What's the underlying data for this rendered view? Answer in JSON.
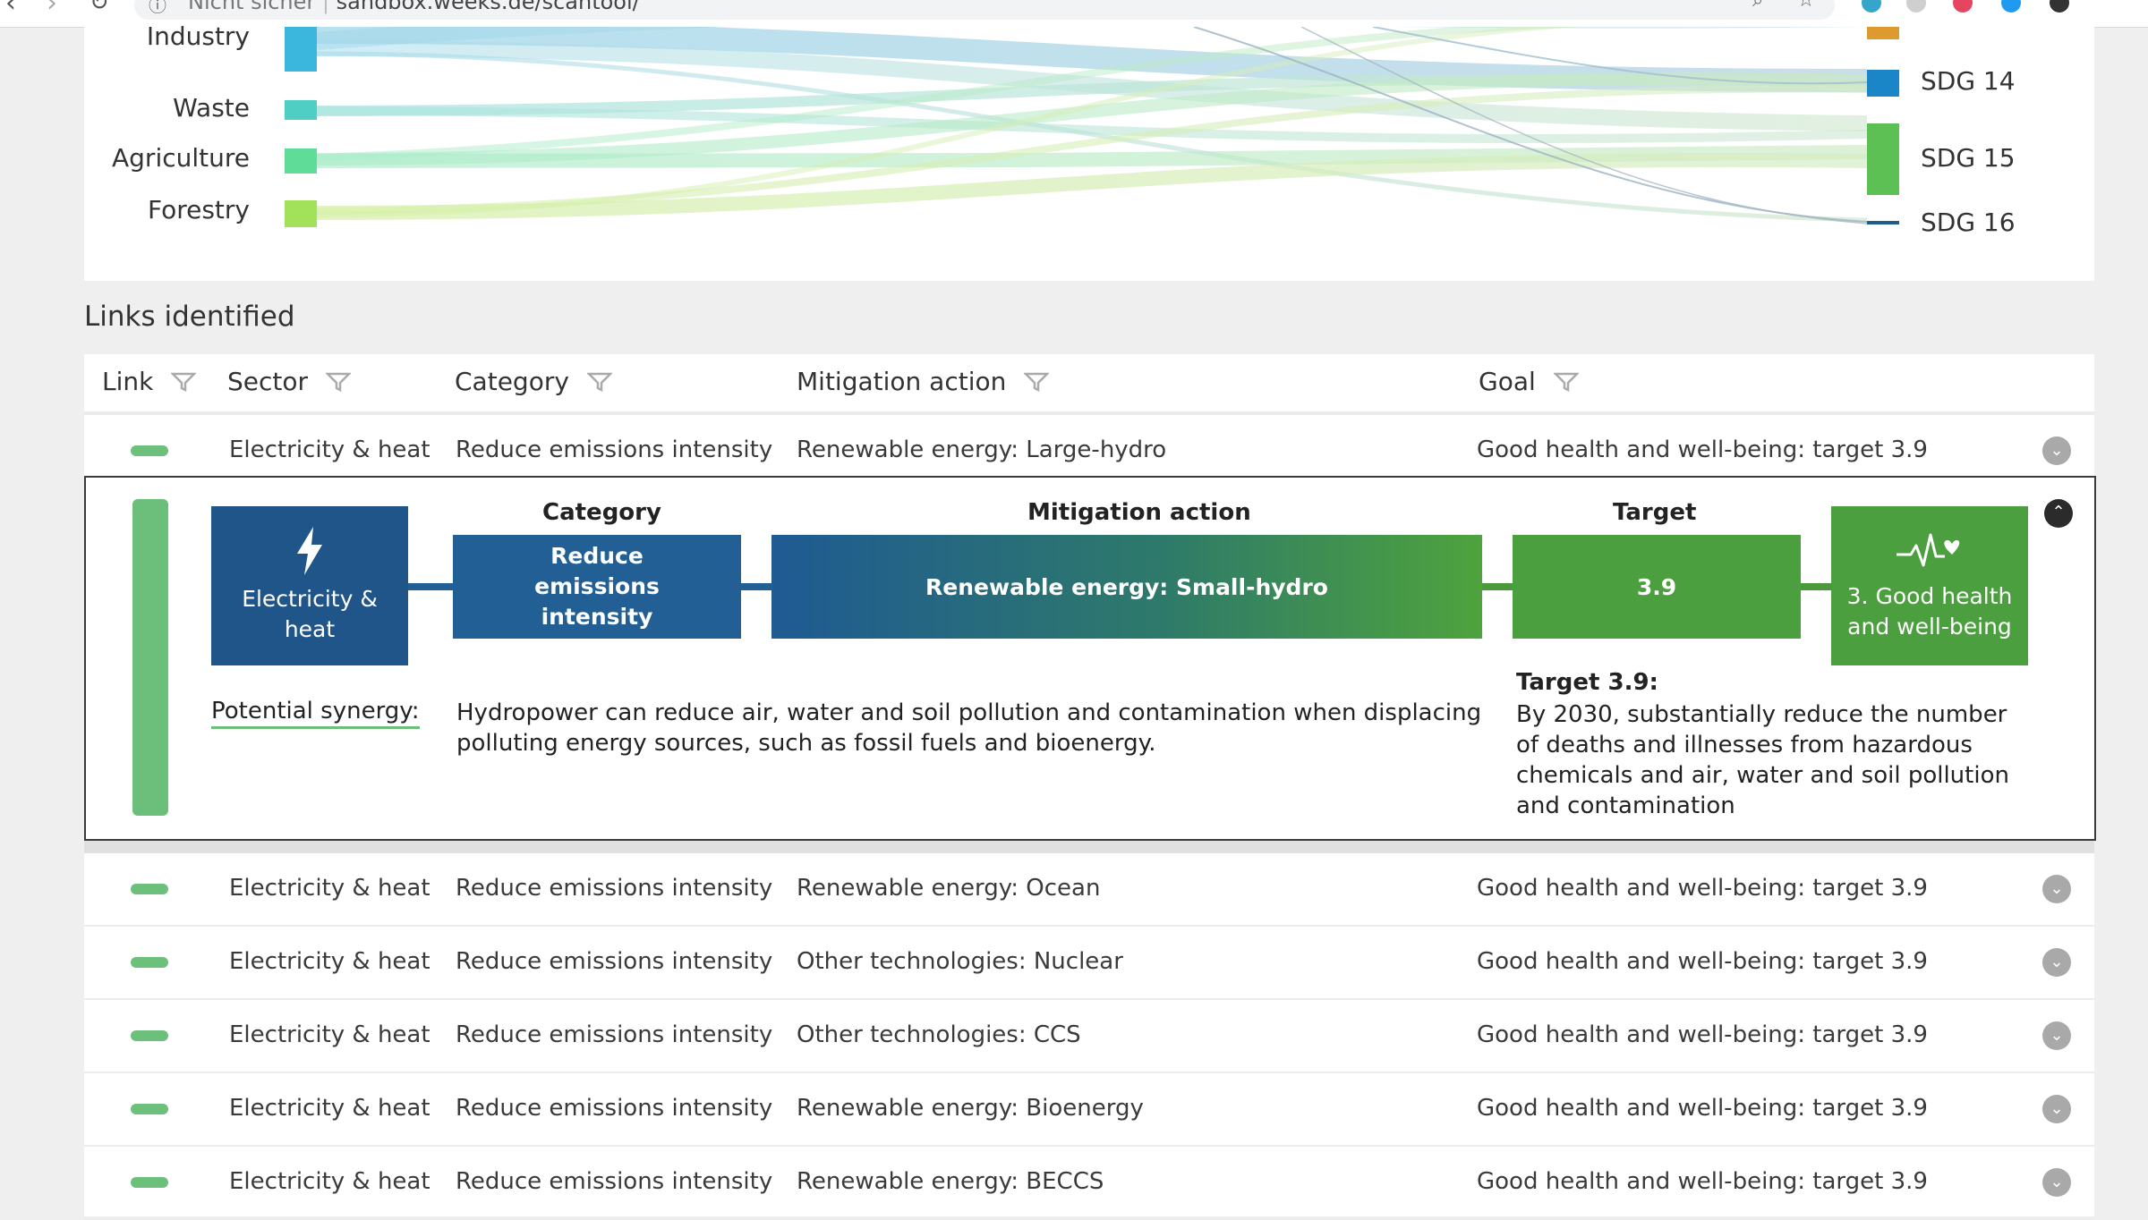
{
  "browser": {
    "security_label": "Nicht sicher",
    "url": "sandbox.weeks.de/scantool/"
  },
  "sankey": {
    "sectors": [
      {
        "label": "Industry",
        "color": "#3bb7dd"
      },
      {
        "label": "Waste",
        "color": "#4fcfc3"
      },
      {
        "label": "Agriculture",
        "color": "#5edc98"
      },
      {
        "label": "Forestry",
        "color": "#a2e25a"
      }
    ],
    "goals": [
      {
        "label": "SDG 14",
        "color": "#1a86c8"
      },
      {
        "label": "SDG 15",
        "color": "#5cc054"
      },
      {
        "label": "SDG 16",
        "color": "#1e5e8c"
      }
    ]
  },
  "links_heading": "Links identified",
  "table": {
    "headers": {
      "link": "Link",
      "sector": "Sector",
      "category": "Category",
      "mitigation_action": "Mitigation action",
      "goal": "Goal"
    },
    "rows": [
      {
        "sector": "Electricity & heat",
        "category": "Reduce emissions intensity",
        "action": "Renewable energy: Large-hydro",
        "goal": "Good health and well-being: target 3.9"
      },
      {
        "sector": "Electricity & heat",
        "category": "Reduce emissions intensity",
        "action": "Renewable energy: Ocean",
        "goal": "Good health and well-being: target 3.9"
      },
      {
        "sector": "Electricity & heat",
        "category": "Reduce emissions intensity",
        "action": "Other technologies: Nuclear",
        "goal": "Good health and well-being: target 3.9"
      },
      {
        "sector": "Electricity & heat",
        "category": "Reduce emissions intensity",
        "action": "Other technologies: CCS",
        "goal": "Good health and well-being: target 3.9"
      },
      {
        "sector": "Electricity & heat",
        "category": "Reduce emissions intensity",
        "action": "Renewable energy: Bioenergy",
        "goal": "Good health and well-being: target 3.9"
      },
      {
        "sector": "Electricity & heat",
        "category": "Reduce emissions intensity",
        "action": "Renewable energy: BECCS",
        "goal": "Good health and well-being: target 3.9"
      }
    ]
  },
  "detail": {
    "headers": {
      "category": "Category",
      "mitigation_action": "Mitigation action",
      "target": "Target"
    },
    "sector_box": "Electricity & heat",
    "category_box": "Reduce emissions intensity",
    "action_box": "Renewable energy: Small-hydro",
    "target_box": "3.9",
    "goal_box": "3. Good health and well-being",
    "synergy_label": "Potential synergy:",
    "synergy_text": "Hydropower can reduce air, water and soil pollution and contamination when displacing polluting energy sources, such as fossil fuels and bioenergy.",
    "target_title": "Target 3.9:",
    "target_text": "By 2030, substantially reduce the number of deaths and illnesses from hazardous chemicals and air, water and soil pollution and contamination"
  },
  "icons": {
    "filter": "filter-icon",
    "expand": "chevron-down-icon",
    "collapse": "chevron-up-icon",
    "sector": "lightning-icon",
    "goal": "heartbeat-icon"
  }
}
